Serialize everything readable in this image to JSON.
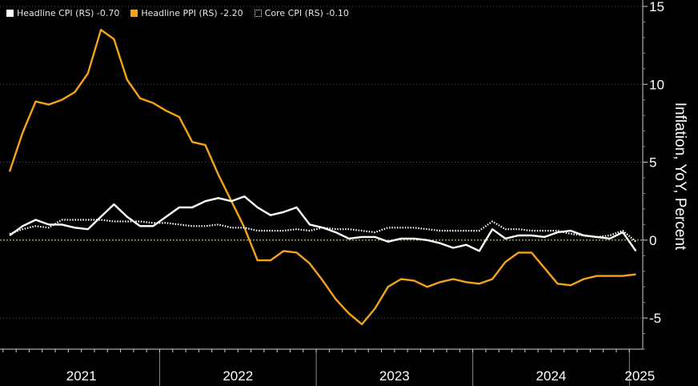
{
  "chart_data": {
    "type": "line",
    "title": "",
    "xlabel": "",
    "ylabel": "Inflation, YoY, Percent",
    "ylim": [
      -7,
      15
    ],
    "yticks": [
      15,
      10,
      5,
      0,
      -5
    ],
    "ytick_labels": [
      "15",
      "10",
      "5",
      "0",
      "-5"
    ],
    "year_labels": [
      "2021",
      "2022",
      "2023",
      "2024",
      "2025"
    ],
    "x_start": "2021-01",
    "x_end": "2025-02",
    "zero_line_color": "#e6d200",
    "legend_position": "top-left",
    "grid": "horizontal dotted",
    "series": [
      {
        "name": "Headline CPI (RS) -0.70",
        "key": "headline_cpi",
        "color": "#ffffff",
        "style": "solid",
        "values": [
          0.3,
          0.9,
          1.3,
          1.0,
          1.0,
          0.8,
          0.7,
          1.5,
          2.3,
          1.5,
          0.9,
          0.9,
          1.5,
          2.1,
          2.1,
          2.5,
          2.7,
          2.5,
          2.8,
          2.1,
          1.6,
          1.8,
          2.1,
          1.0,
          0.8,
          0.5,
          0.1,
          0.2,
          0.2,
          -0.1,
          0.1,
          0.1,
          0.0,
          -0.2,
          -0.5,
          -0.3,
          -0.7,
          0.7,
          0.1,
          0.3,
          0.3,
          0.2,
          0.5,
          0.6,
          0.3,
          0.2,
          0.1,
          0.5,
          -0.7
        ]
      },
      {
        "name": "Headline PPI (RS) -2.20",
        "key": "headline_ppi",
        "color": "#f5a31a",
        "style": "solid",
        "values": [
          4.4,
          6.9,
          8.9,
          8.7,
          9.0,
          9.5,
          10.7,
          13.5,
          12.9,
          10.3,
          9.1,
          8.8,
          8.3,
          7.9,
          6.3,
          6.1,
          4.2,
          2.5,
          0.8,
          -1.3,
          -1.3,
          -0.7,
          -0.8,
          -1.5,
          -2.6,
          -3.8,
          -4.7,
          -5.4,
          -4.4,
          -3.0,
          -2.5,
          -2.6,
          -3.0,
          -2.7,
          -2.5,
          -2.7,
          -2.8,
          -2.5,
          -1.4,
          -0.8,
          -0.8,
          -1.8,
          -2.8,
          -2.9,
          -2.5,
          -2.3,
          -2.3,
          -2.3,
          -2.2
        ]
      },
      {
        "name": "Core CPI (RS) -0.10",
        "key": "core_cpi",
        "color": "#ffffff",
        "style": "dotted",
        "values": [
          0.4,
          0.7,
          0.9,
          0.8,
          1.3,
          1.3,
          1.3,
          1.3,
          1.2,
          1.2,
          1.2,
          1.1,
          1.1,
          1.0,
          0.9,
          0.9,
          1.0,
          0.8,
          0.8,
          0.6,
          0.6,
          0.6,
          0.7,
          0.6,
          0.8,
          0.7,
          0.7,
          0.6,
          0.5,
          0.8,
          0.8,
          0.8,
          0.7,
          0.6,
          0.6,
          0.6,
          0.6,
          1.2,
          0.7,
          0.7,
          0.6,
          0.6,
          0.6,
          0.4,
          0.3,
          0.2,
          0.3,
          0.6,
          -0.1
        ]
      }
    ]
  }
}
